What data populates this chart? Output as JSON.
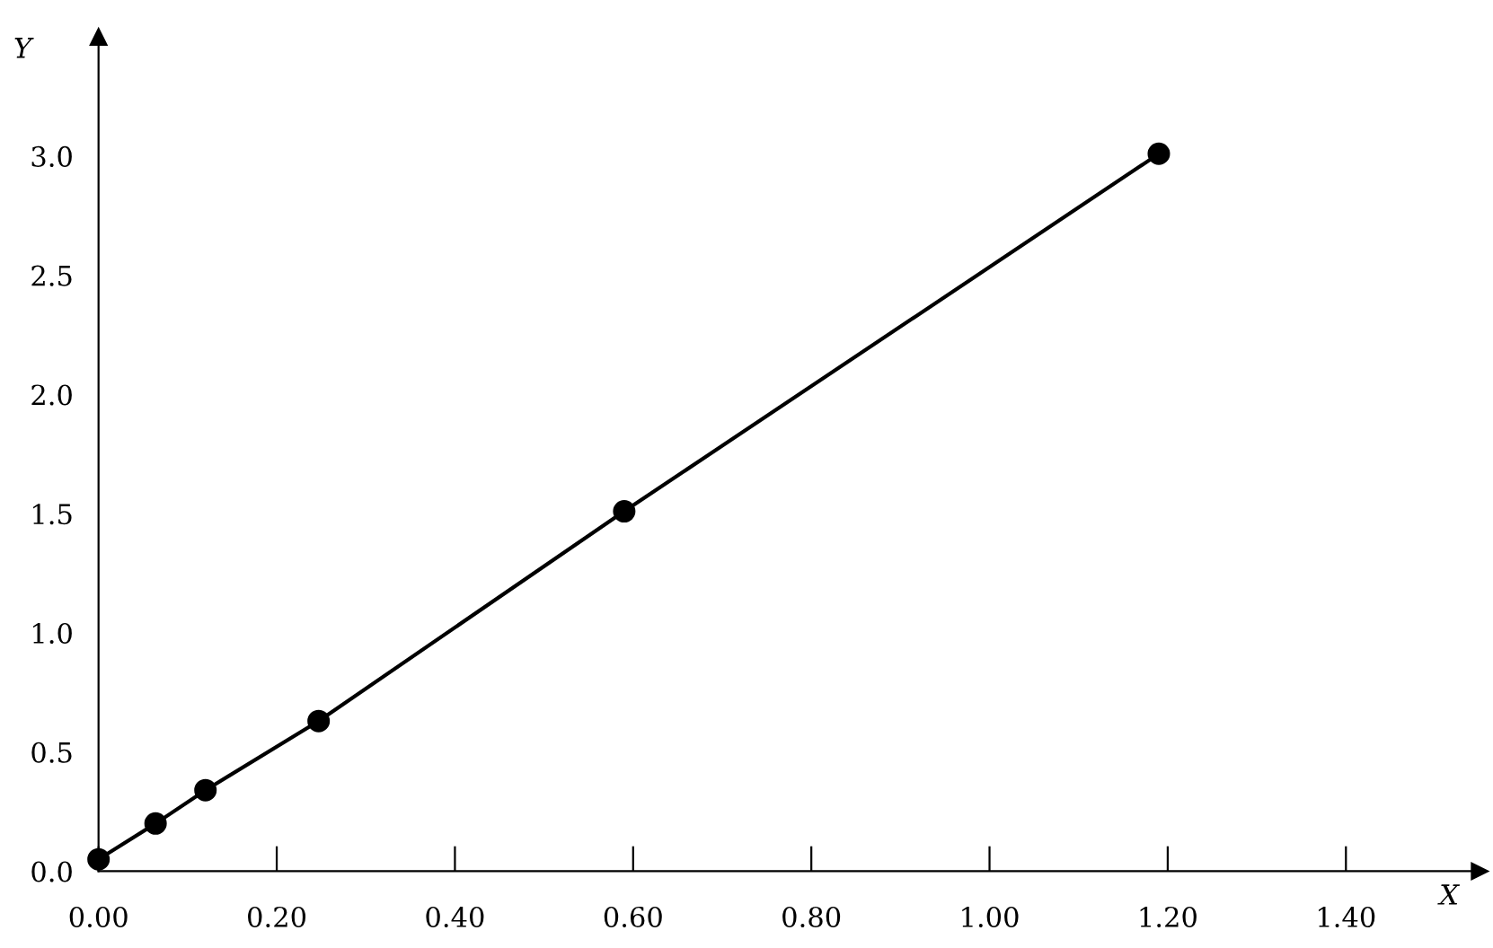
{
  "chart_data": {
    "type": "line",
    "xlabel": "X",
    "ylabel": "Y",
    "x": [
      0.0,
      0.064,
      0.12,
      0.247,
      0.59,
      1.19
    ],
    "series": [
      {
        "color": "#000000",
        "values": [
          0.05,
          0.2,
          0.34,
          0.63,
          1.51,
          3.01
        ]
      }
    ],
    "marker": "circle",
    "line_style": "solid",
    "grid": false,
    "legend": false,
    "xlim": [
      0,
      1.55
    ],
    "ylim": [
      0,
      3.5
    ],
    "xticks": [
      {
        "value": 0,
        "label": "0.00"
      },
      {
        "value": 0.2,
        "label": "0.20"
      },
      {
        "value": 0.4,
        "label": "0.40"
      },
      {
        "value": 0.6,
        "label": "0.60"
      },
      {
        "value": 0.8,
        "label": "0.80"
      },
      {
        "value": 1.0,
        "label": "1.00"
      },
      {
        "value": 1.2,
        "label": "1.20"
      },
      {
        "value": 1.4,
        "label": "1.40"
      }
    ],
    "yticks": [
      {
        "value": 0,
        "label": "0.0"
      },
      {
        "value": 0.5,
        "label": "0.5"
      },
      {
        "value": 1.0,
        "label": "1.0"
      },
      {
        "value": 1.5,
        "label": "1.5"
      },
      {
        "value": 2.0,
        "label": "2.0"
      },
      {
        "value": 2.5,
        "label": "2.5"
      },
      {
        "value": 3.0,
        "label": "3.0"
      }
    ]
  }
}
